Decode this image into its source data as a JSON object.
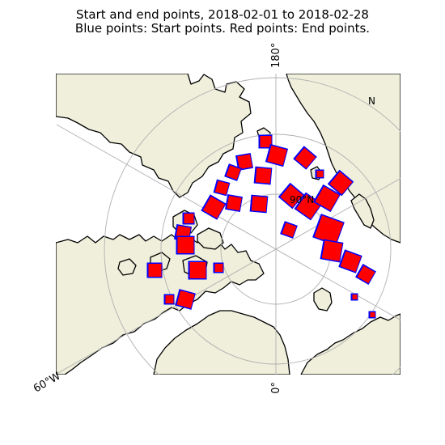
{
  "title": {
    "line1": "Start and end points, 2018-02-01 to 2018-02-28",
    "line2": "Blue points: Start points. Red points: End points."
  },
  "map": {
    "projection": "north polar stereographic",
    "land_color": "#efefdb",
    "ocean_color": "#ffffff",
    "coastline_color": "#000000",
    "grid_color": "#b0b0b0",
    "tick_labels": {
      "top": "180°",
      "bottom": "0°",
      "left": "60°W"
    },
    "grid_labels": [
      {
        "id": "pole-label",
        "text": "90°N"
      },
      {
        "id": "upper-right-label",
        "text": "N"
      }
    ]
  },
  "legend_colors": {
    "start": "#0000ff",
    "end": "#ff0000"
  }
}
